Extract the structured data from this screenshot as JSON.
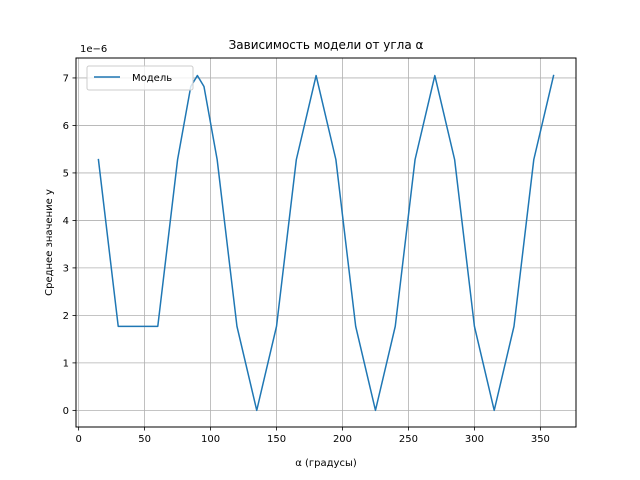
{
  "chart_data": {
    "type": "line",
    "title": "Зависимость модели от угла α",
    "xlabel": "α (градусы)",
    "ylabel": "Среднее значение y",
    "y_offset_text": "1e−6",
    "y_scale": "1e-6",
    "xlim": [
      -2,
      377
    ],
    "ylim": [
      -0.35,
      7.42
    ],
    "x_ticks": [
      0,
      50,
      100,
      150,
      200,
      250,
      300,
      350
    ],
    "x_tick_labels": [
      "0",
      "50",
      "100",
      "150",
      "200",
      "250",
      "300",
      "350"
    ],
    "y_ticks": [
      0,
      1,
      2,
      3,
      4,
      5,
      6,
      7
    ],
    "y_tick_labels": [
      "0",
      "1",
      "2",
      "3",
      "4",
      "5",
      "6",
      "7"
    ],
    "grid": true,
    "legend_position": "upper-left",
    "series": [
      {
        "name": "Модель",
        "color": "#1f77b4",
        "x": [
          15,
          30,
          45,
          60,
          75,
          85,
          90,
          95,
          105,
          120,
          135,
          150,
          165,
          180,
          195,
          210,
          225,
          240,
          255,
          270,
          285,
          300,
          315,
          330,
          345,
          360
        ],
        "y": [
          5.28,
          1.77,
          1.77,
          1.77,
          5.28,
          6.82,
          7.05,
          6.82,
          5.28,
          1.77,
          0.0,
          1.77,
          5.28,
          7.05,
          5.28,
          1.77,
          0.0,
          1.77,
          5.28,
          7.05,
          5.28,
          1.77,
          0.0,
          1.77,
          5.28,
          7.05
        ]
      }
    ]
  }
}
